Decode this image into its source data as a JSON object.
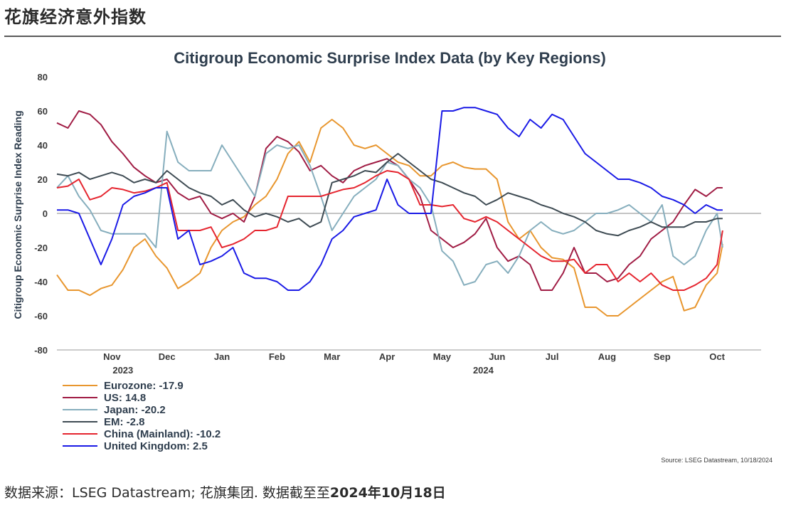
{
  "header": {
    "title": "花旗经济意外指数"
  },
  "footer": {
    "prefix": "数据来源：",
    "source_text": "LSEG Datastream; 花旗集团. 数据截至至",
    "date_text": "2024年10月18日"
  },
  "chart_data": {
    "type": "line",
    "title": "Citigroup Economic Surprise Index Data (by Key Regions)",
    "ylabel": "Citigroup Economic Surprise Index Reading",
    "xlabel": "",
    "ylim": [
      -80,
      80
    ],
    "yticks": [
      80,
      60,
      40,
      20,
      0,
      -20,
      -40,
      -60,
      -80
    ],
    "xlim": [
      0,
      12.8
    ],
    "month_ticks": [
      {
        "label": "Nov",
        "x": 1.0
      },
      {
        "label": "Dec",
        "x": 2.0
      },
      {
        "label": "Jan",
        "x": 3.0
      },
      {
        "label": "Feb",
        "x": 4.0
      },
      {
        "label": "Mar",
        "x": 5.0
      },
      {
        "label": "Apr",
        "x": 6.0
      },
      {
        "label": "May",
        "x": 7.0
      },
      {
        "label": "Jun",
        "x": 8.0
      },
      {
        "label": "Jul",
        "x": 9.0
      },
      {
        "label": "Aug",
        "x": 10.0
      },
      {
        "label": "Sep",
        "x": 11.0
      },
      {
        "label": "Oct",
        "x": 12.0
      }
    ],
    "year_labels": [
      {
        "label": "2023",
        "x": 1.2
      },
      {
        "label": "2024",
        "x": 7.75
      }
    ],
    "source": "Source: LSEG Datastream, 10/18/2024",
    "series": [
      {
        "name": "Eurozone",
        "legend": "Eurozone: -17.9",
        "color": "#e8962e",
        "x": [
          0,
          0.2,
          0.4,
          0.6,
          0.8,
          1.0,
          1.2,
          1.4,
          1.6,
          1.8,
          2.0,
          2.2,
          2.4,
          2.6,
          2.8,
          3.0,
          3.2,
          3.4,
          3.6,
          3.8,
          4.0,
          4.2,
          4.4,
          4.6,
          4.8,
          5.0,
          5.2,
          5.4,
          5.6,
          5.8,
          6.0,
          6.2,
          6.4,
          6.6,
          6.8,
          7.0,
          7.2,
          7.4,
          7.6,
          7.8,
          8.0,
          8.2,
          8.4,
          8.6,
          8.8,
          9.0,
          9.2,
          9.4,
          9.6,
          9.8,
          10.0,
          10.2,
          10.4,
          10.6,
          10.8,
          11.0,
          11.2,
          11.4,
          11.6,
          11.8,
          12.0,
          12.1
        ],
        "values": [
          -36,
          -45,
          -45,
          -48,
          -44,
          -42,
          -33,
          -20,
          -15,
          -25,
          -32,
          -44,
          -40,
          -35,
          -20,
          -10,
          -5,
          -2,
          5,
          10,
          20,
          35,
          42,
          30,
          50,
          55,
          50,
          40,
          38,
          40,
          35,
          30,
          28,
          22,
          22,
          28,
          30,
          27,
          26,
          26,
          20,
          -5,
          -15,
          -10,
          -20,
          -26,
          -27,
          -32,
          -55,
          -55,
          -60,
          -60,
          -55,
          -50,
          -45,
          -40,
          -37,
          -57,
          -55,
          -42,
          -35,
          -18
        ]
      },
      {
        "name": "US",
        "legend": "US: 14.8",
        "color": "#a01c44",
        "x": [
          0,
          0.2,
          0.4,
          0.6,
          0.8,
          1.0,
          1.2,
          1.4,
          1.6,
          1.8,
          2.0,
          2.2,
          2.4,
          2.6,
          2.8,
          3.0,
          3.2,
          3.4,
          3.6,
          3.8,
          4.0,
          4.2,
          4.4,
          4.6,
          4.8,
          5.0,
          5.2,
          5.4,
          5.6,
          5.8,
          6.0,
          6.2,
          6.4,
          6.6,
          6.8,
          7.0,
          7.2,
          7.4,
          7.6,
          7.8,
          8.0,
          8.2,
          8.4,
          8.6,
          8.8,
          9.0,
          9.2,
          9.4,
          9.6,
          9.8,
          10.0,
          10.2,
          10.4,
          10.6,
          10.8,
          11.0,
          11.2,
          11.4,
          11.6,
          11.8,
          12.0,
          12.1
        ],
        "values": [
          53,
          50,
          60,
          58,
          52,
          42,
          35,
          27,
          22,
          18,
          20,
          12,
          8,
          10,
          0,
          -3,
          0,
          -5,
          10,
          38,
          45,
          42,
          36,
          25,
          28,
          22,
          18,
          25,
          28,
          30,
          32,
          28,
          20,
          10,
          -10,
          -15,
          -20,
          -17,
          -12,
          -3,
          -20,
          -28,
          -25,
          -30,
          -45,
          -45,
          -35,
          -20,
          -35,
          -35,
          -40,
          -38,
          -30,
          -25,
          -15,
          -10,
          -5,
          5,
          14,
          10,
          15,
          15
        ]
      },
      {
        "name": "Japan",
        "legend": "Japan: -20.2",
        "color": "#86aebd",
        "x": [
          0,
          0.2,
          0.4,
          0.6,
          0.8,
          1.0,
          1.2,
          1.4,
          1.6,
          1.8,
          2.0,
          2.2,
          2.4,
          2.6,
          2.8,
          3.0,
          3.2,
          3.4,
          3.6,
          3.8,
          4.0,
          4.2,
          4.4,
          4.6,
          4.8,
          5.0,
          5.2,
          5.4,
          5.6,
          5.8,
          6.0,
          6.2,
          6.4,
          6.6,
          6.8,
          7.0,
          7.2,
          7.4,
          7.6,
          7.8,
          8.0,
          8.2,
          8.4,
          8.6,
          8.8,
          9.0,
          9.2,
          9.4,
          9.6,
          9.8,
          10.0,
          10.2,
          10.4,
          10.6,
          10.8,
          11.0,
          11.2,
          11.4,
          11.6,
          11.8,
          12.0,
          12.1
        ],
        "values": [
          15,
          22,
          10,
          2,
          -10,
          -12,
          -12,
          -12,
          -12,
          -20,
          48,
          30,
          25,
          25,
          25,
          40,
          30,
          20,
          10,
          35,
          40,
          38,
          40,
          28,
          10,
          -10,
          0,
          10,
          15,
          20,
          30,
          28,
          20,
          15,
          5,
          -22,
          -28,
          -42,
          -40,
          -30,
          -28,
          -35,
          -25,
          -10,
          -5,
          -10,
          -12,
          -10,
          -5,
          0,
          0,
          2,
          5,
          0,
          -5,
          5,
          -25,
          -30,
          -25,
          -10,
          0,
          -20
        ]
      },
      {
        "name": "EM",
        "legend": "EM: -2.8",
        "color": "#3e4b53",
        "x": [
          0,
          0.2,
          0.4,
          0.6,
          0.8,
          1.0,
          1.2,
          1.4,
          1.6,
          1.8,
          2.0,
          2.2,
          2.4,
          2.6,
          2.8,
          3.0,
          3.2,
          3.4,
          3.6,
          3.8,
          4.0,
          4.2,
          4.4,
          4.6,
          4.8,
          5.0,
          5.2,
          5.4,
          5.6,
          5.8,
          6.0,
          6.2,
          6.4,
          6.6,
          6.8,
          7.0,
          7.2,
          7.4,
          7.6,
          7.8,
          8.0,
          8.2,
          8.4,
          8.6,
          8.8,
          9.0,
          9.2,
          9.4,
          9.6,
          9.8,
          10.0,
          10.2,
          10.4,
          10.6,
          10.8,
          11.0,
          11.2,
          11.4,
          11.6,
          11.8,
          12.0,
          12.1
        ],
        "values": [
          23,
          22,
          24,
          20,
          22,
          24,
          22,
          18,
          20,
          18,
          25,
          20,
          15,
          12,
          10,
          5,
          8,
          2,
          -2,
          0,
          -2,
          -5,
          -3,
          -8,
          -5,
          18,
          20,
          22,
          25,
          24,
          30,
          35,
          30,
          25,
          20,
          18,
          15,
          12,
          10,
          5,
          8,
          12,
          10,
          8,
          5,
          3,
          0,
          -2,
          -5,
          -10,
          -12,
          -13,
          -10,
          -8,
          -5,
          -8,
          -8,
          -8,
          -5,
          -5,
          -3,
          -3
        ]
      },
      {
        "name": "China (Mainland)",
        "legend": "China (Mainland): -10.2",
        "color": "#e5252f",
        "x": [
          0,
          0.2,
          0.4,
          0.6,
          0.8,
          1.0,
          1.2,
          1.4,
          1.6,
          1.8,
          2.0,
          2.2,
          2.4,
          2.6,
          2.8,
          3.0,
          3.2,
          3.4,
          3.6,
          3.8,
          4.0,
          4.2,
          4.4,
          4.6,
          4.8,
          5.0,
          5.2,
          5.4,
          5.6,
          5.8,
          6.0,
          6.2,
          6.4,
          6.6,
          6.8,
          7.0,
          7.2,
          7.4,
          7.6,
          7.8,
          8.0,
          8.2,
          8.4,
          8.6,
          8.8,
          9.0,
          9.2,
          9.4,
          9.6,
          9.8,
          10.0,
          10.2,
          10.4,
          10.6,
          10.8,
          11.0,
          11.2,
          11.4,
          11.6,
          11.8,
          12.0,
          12.1
        ],
        "values": [
          15,
          16,
          20,
          8,
          10,
          15,
          14,
          12,
          13,
          15,
          18,
          -10,
          -10,
          -10,
          -8,
          -20,
          -18,
          -15,
          -10,
          -10,
          -8,
          10,
          10,
          10,
          10,
          12,
          14,
          15,
          18,
          22,
          25,
          24,
          20,
          5,
          5,
          4,
          5,
          -3,
          -5,
          -2,
          -5,
          -10,
          -15,
          -20,
          -25,
          -28,
          -28,
          -27,
          -35,
          -30,
          -30,
          -40,
          -35,
          -40,
          -35,
          -42,
          -45,
          -45,
          -42,
          -38,
          -30,
          -10
        ]
      },
      {
        "name": "United Kingdom",
        "legend": "United Kingdom: 2.5",
        "color": "#1a1ae6",
        "x": [
          0,
          0.2,
          0.4,
          0.6,
          0.8,
          1.0,
          1.2,
          1.4,
          1.6,
          1.8,
          2.0,
          2.2,
          2.4,
          2.6,
          2.8,
          3.0,
          3.2,
          3.4,
          3.6,
          3.8,
          4.0,
          4.2,
          4.4,
          4.6,
          4.8,
          5.0,
          5.2,
          5.4,
          5.6,
          5.8,
          6.0,
          6.2,
          6.4,
          6.6,
          6.8,
          7.0,
          7.2,
          7.4,
          7.6,
          7.8,
          8.0,
          8.2,
          8.4,
          8.6,
          8.8,
          9.0,
          9.2,
          9.4,
          9.6,
          9.8,
          10.0,
          10.2,
          10.4,
          10.6,
          10.8,
          11.0,
          11.2,
          11.4,
          11.6,
          11.8,
          12.0,
          12.1
        ],
        "values": [
          2,
          2,
          0,
          -15,
          -30,
          -15,
          5,
          10,
          12,
          15,
          15,
          -15,
          -10,
          -30,
          -28,
          -25,
          -20,
          -35,
          -38,
          -38,
          -40,
          -45,
          -45,
          -40,
          -30,
          -15,
          -10,
          -2,
          0,
          2,
          20,
          5,
          0,
          0,
          0,
          60,
          60,
          62,
          62,
          60,
          58,
          50,
          45,
          55,
          50,
          58,
          55,
          45,
          35,
          30,
          25,
          20,
          20,
          18,
          15,
          10,
          8,
          5,
          0,
          5,
          2,
          2
        ]
      }
    ]
  }
}
